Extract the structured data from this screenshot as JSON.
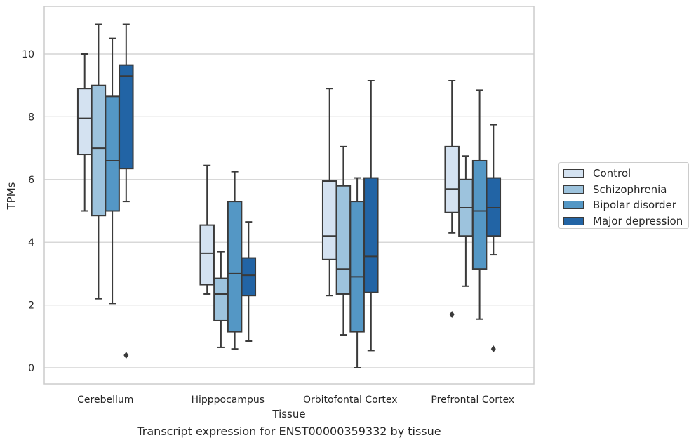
{
  "chart_data": {
    "type": "box",
    "xlabel": "Tissue",
    "ylabel": "TPMs",
    "caption": "Transcript expression for ENST00000359332 by tissue",
    "ylim": [
      -0.5,
      11.5
    ],
    "yticks": [
      0,
      2,
      4,
      6,
      8,
      10
    ],
    "grid": "horizontal",
    "legend_position": "right",
    "categories": [
      "Cerebellum",
      "Hipppocampus",
      "Orbitofontal Cortex",
      "Prefrontal Cortex"
    ],
    "series": [
      {
        "name": "Control",
        "color": "#d4e2f1",
        "boxes": [
          {
            "whisker_low": 5.0,
            "q1": 6.8,
            "median": 7.95,
            "q3": 8.9,
            "whisker_high": 10.0,
            "outliers": []
          },
          {
            "whisker_low": 2.35,
            "q1": 2.65,
            "median": 3.65,
            "q3": 4.55,
            "whisker_high": 6.45,
            "outliers": []
          },
          {
            "whisker_low": 2.3,
            "q1": 3.45,
            "median": 4.2,
            "q3": 5.95,
            "whisker_high": 8.9,
            "outliers": []
          },
          {
            "whisker_low": 4.3,
            "q1": 4.95,
            "median": 5.7,
            "q3": 7.05,
            "whisker_high": 9.15,
            "outliers": [
              1.7
            ]
          }
        ]
      },
      {
        "name": "Schizophrenia",
        "color": "#9dc3dd",
        "boxes": [
          {
            "whisker_low": 2.2,
            "q1": 4.85,
            "median": 7.0,
            "q3": 9.0,
            "whisker_high": 10.95,
            "outliers": []
          },
          {
            "whisker_low": 0.65,
            "q1": 1.5,
            "median": 2.35,
            "q3": 2.85,
            "whisker_high": 3.7,
            "outliers": []
          },
          {
            "whisker_low": 1.05,
            "q1": 2.35,
            "median": 3.15,
            "q3": 5.8,
            "whisker_high": 7.05,
            "outliers": []
          },
          {
            "whisker_low": 2.6,
            "q1": 4.2,
            "median": 5.1,
            "q3": 6.0,
            "whisker_high": 6.75,
            "outliers": []
          }
        ]
      },
      {
        "name": "Bipolar disorder",
        "color": "#5497c5",
        "boxes": [
          {
            "whisker_low": 2.05,
            "q1": 5.0,
            "median": 6.6,
            "q3": 8.65,
            "whisker_high": 10.5,
            "outliers": []
          },
          {
            "whisker_low": 0.6,
            "q1": 1.15,
            "median": 3.0,
            "q3": 5.3,
            "whisker_high": 6.25,
            "outliers": []
          },
          {
            "whisker_low": 0.0,
            "q1": 1.15,
            "median": 2.9,
            "q3": 5.3,
            "whisker_high": 6.05,
            "outliers": []
          },
          {
            "whisker_low": 1.55,
            "q1": 3.15,
            "median": 5.0,
            "q3": 6.6,
            "whisker_high": 8.85,
            "outliers": []
          }
        ]
      },
      {
        "name": "Major depression",
        "color": "#2264a5",
        "boxes": [
          {
            "whisker_low": 5.3,
            "q1": 6.35,
            "median": 9.3,
            "q3": 9.65,
            "whisker_high": 10.95,
            "outliers": [
              0.4
            ]
          },
          {
            "whisker_low": 0.85,
            "q1": 2.3,
            "median": 2.95,
            "q3": 3.5,
            "whisker_high": 4.65,
            "outliers": []
          },
          {
            "whisker_low": 0.55,
            "q1": 2.4,
            "median": 3.55,
            "q3": 6.05,
            "whisker_high": 9.15,
            "outliers": []
          },
          {
            "whisker_low": 3.6,
            "q1": 4.2,
            "median": 5.1,
            "q3": 6.05,
            "whisker_high": 7.75,
            "outliers": [
              0.6
            ]
          }
        ]
      }
    ]
  }
}
